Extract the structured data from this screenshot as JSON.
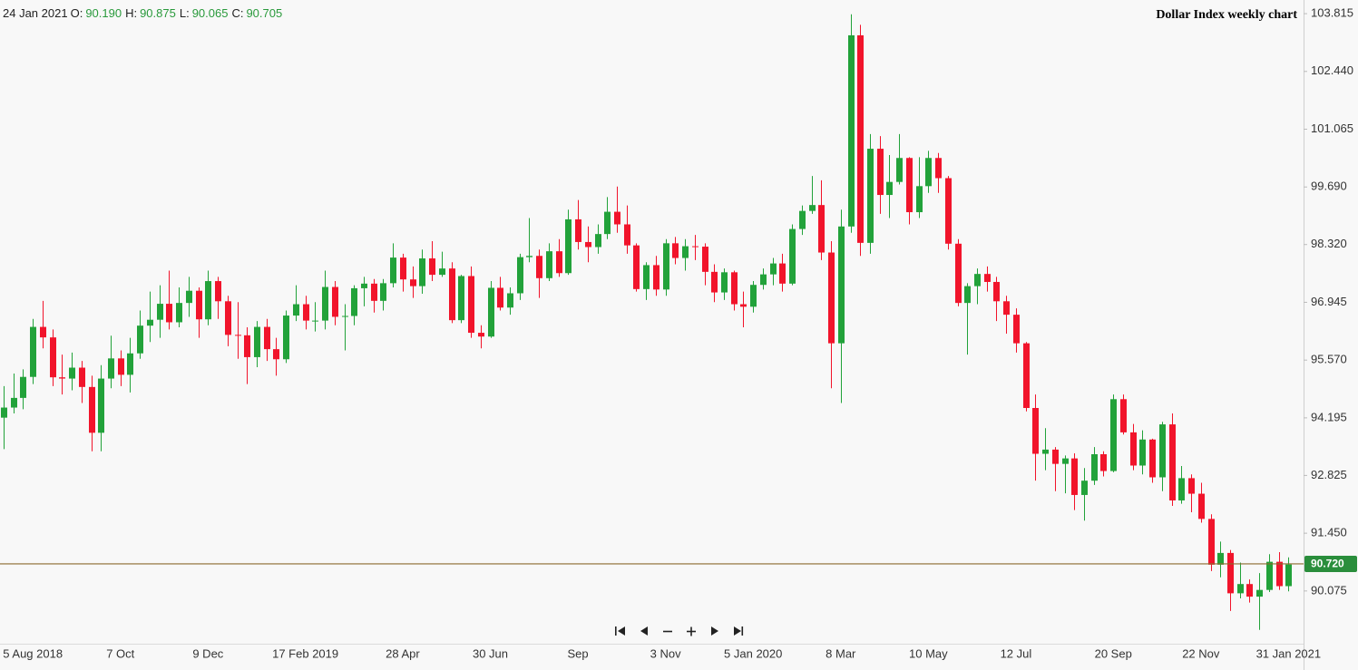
{
  "chart_data": {
    "type": "candlestick",
    "title": "Dollar Index weekly chart",
    "header": {
      "date": "24 Jan 2021",
      "fields": [
        {
          "label": "O:",
          "text": "90.190"
        },
        {
          "label": "H:",
          "text": "90.875"
        },
        {
          "label": "L:",
          "text": "90.065"
        },
        {
          "label": "C:",
          "text": "90.705"
        }
      ]
    },
    "up_color": "#22a23a",
    "down_color": "#f1142b",
    "last_price": {
      "value": 90.72,
      "label": "90.720",
      "line_color": "#8a6a2e",
      "box_color": "#2a8e3c"
    },
    "ylim": [
      88.82,
      104.14
    ],
    "yticks": [
      103.815,
      {
        "value": 102.44,
        "label": "102.440"
      },
      101.065,
      {
        "value": 99.69,
        "label": "99.690"
      },
      {
        "value": 98.32,
        "label": "98.320"
      },
      96.945,
      {
        "value": 95.57,
        "label": "95.570"
      },
      94.195,
      92.825,
      {
        "value": 91.45,
        "label": "91.450"
      },
      90.075
    ],
    "categories": [
      null,
      null,
      null,
      "5 Aug 2018",
      null,
      null,
      null,
      null,
      null,
      null,
      null,
      null,
      "7 Oct",
      null,
      null,
      null,
      null,
      null,
      null,
      null,
      null,
      "9 Dec",
      null,
      null,
      null,
      null,
      null,
      null,
      null,
      null,
      null,
      "17 Feb 2019",
      null,
      null,
      null,
      null,
      null,
      null,
      null,
      null,
      null,
      "28 Apr",
      null,
      null,
      null,
      null,
      null,
      null,
      null,
      null,
      "30 Jun",
      null,
      null,
      null,
      null,
      null,
      null,
      null,
      null,
      "Sep",
      null,
      null,
      null,
      null,
      null,
      null,
      null,
      null,
      "3 Nov",
      null,
      null,
      null,
      null,
      null,
      null,
      null,
      null,
      "5 Jan 2020",
      null,
      null,
      null,
      null,
      null,
      null,
      null,
      null,
      "8 Mar",
      null,
      null,
      null,
      null,
      null,
      null,
      null,
      null,
      "10 May",
      null,
      null,
      null,
      null,
      null,
      null,
      null,
      null,
      "12 Jul",
      null,
      null,
      null,
      null,
      null,
      null,
      null,
      null,
      null,
      "20 Sep",
      null,
      null,
      null,
      null,
      null,
      null,
      null,
      null,
      "22 Nov",
      null,
      null,
      null,
      null,
      null,
      null,
      null,
      null,
      "31 Jan 2021"
    ],
    "open": [
      94.2,
      94.44,
      94.67,
      95.17,
      96.36,
      96.11,
      95.16,
      95.13,
      95.39,
      94.93,
      93.84,
      95.13,
      95.61,
      95.22,
      95.73,
      96.39,
      96.53,
      96.91,
      96.47,
      96.93,
      97.22,
      96.54,
      97.45,
      96.97,
      96.17,
      96.16,
      95.64,
      96.36,
      95.83,
      95.59,
      96.63,
      96.9,
      96.51,
      96.51,
      97.31,
      96.6,
      96.62,
      97.28,
      97.39,
      96.98,
      97.4,
      98.01,
      97.49,
      97.33,
      97.99,
      97.6,
      97.75,
      96.52,
      97.57,
      96.22,
      96.13,
      97.29,
      96.82,
      97.16,
      98.02,
      98.05,
      97.52,
      98.16,
      97.64,
      98.92,
      98.38,
      98.26,
      98.57,
      99.1,
      98.8,
      98.3,
      97.26,
      97.83,
      97.25,
      98.35,
      98.0,
      98.28,
      98.27,
      97.67,
      97.18,
      97.66,
      96.9,
      96.84,
      97.36,
      97.61,
      97.87,
      97.39,
      98.69,
      99.12,
      99.26,
      98.13,
      95.97,
      98.75,
      103.3,
      98.36,
      100.6,
      99.5,
      99.81,
      100.38,
      99.09,
      99.71,
      100.38,
      99.9,
      98.34,
      96.93,
      97.33,
      97.62,
      97.43,
      96.97,
      96.65,
      95.97,
      94.43,
      93.34,
      93.44,
      93.1,
      93.23,
      92.36,
      92.7,
      93.33,
      92.93,
      94.64,
      93.85,
      93.06,
      93.68,
      92.78,
      94.04,
      92.23,
      92.76,
      92.39,
      91.79,
      90.7,
      90.98,
      90.02,
      90.24,
      89.94,
      90.1,
      90.77,
      90.19
    ],
    "high": [
      94.95,
      95.25,
      95.35,
      96.55,
      96.98,
      96.3,
      95.7,
      95.75,
      95.55,
      95.2,
      95.45,
      96.15,
      95.8,
      96.1,
      96.75,
      97.2,
      97.35,
      97.7,
      97.3,
      97.55,
      97.3,
      97.7,
      97.55,
      97.1,
      96.95,
      96.35,
      96.5,
      96.55,
      96.1,
      96.75,
      97.35,
      97.1,
      96.95,
      97.7,
      97.45,
      96.9,
      97.35,
      97.55,
      97.5,
      97.5,
      98.35,
      98.1,
      97.8,
      98.2,
      98.4,
      98.15,
      97.9,
      97.6,
      97.8,
      96.4,
      97.45,
      97.55,
      97.3,
      98.1,
      98.95,
      98.2,
      98.35,
      98.45,
      99.15,
      99.38,
      98.75,
      98.8,
      99.45,
      99.7,
      99.25,
      98.35,
      97.9,
      98.05,
      98.45,
      98.5,
      98.45,
      98.55,
      98.35,
      97.85,
      97.75,
      97.7,
      97.2,
      97.45,
      97.75,
      98.0,
      98.1,
      98.8,
      99.25,
      99.95,
      99.85,
      98.4,
      99.15,
      103.8,
      103.55,
      100.95,
      100.9,
      100.45,
      100.95,
      100.4,
      100.4,
      100.55,
      100.5,
      99.95,
      98.45,
      97.4,
      97.75,
      97.8,
      97.55,
      97.1,
      96.8,
      96.0,
      94.75,
      93.95,
      93.5,
      93.3,
      93.35,
      93.0,
      93.5,
      93.4,
      94.75,
      94.75,
      94.05,
      93.9,
      93.7,
      94.1,
      94.3,
      93.05,
      92.85,
      92.65,
      91.9,
      91.25,
      91.05,
      90.75,
      90.35,
      90.5,
      90.95,
      91.0,
      90.875
    ],
    "low": [
      93.45,
      94.3,
      94.4,
      95.0,
      95.85,
      94.95,
      94.75,
      94.85,
      94.55,
      93.4,
      93.4,
      94.9,
      94.95,
      94.8,
      95.6,
      96.0,
      96.1,
      96.3,
      96.35,
      96.6,
      96.1,
      96.4,
      96.55,
      95.9,
      95.6,
      95.0,
      95.4,
      95.55,
      95.2,
      95.5,
      96.5,
      96.3,
      96.25,
      96.3,
      96.4,
      95.8,
      96.4,
      96.85,
      96.7,
      96.75,
      97.3,
      97.2,
      97.05,
      97.15,
      97.45,
      97.55,
      96.45,
      96.45,
      96.1,
      95.85,
      96.1,
      96.75,
      96.65,
      97.0,
      97.9,
      97.05,
      97.45,
      97.55,
      97.6,
      98.2,
      97.9,
      98.1,
      98.45,
      98.6,
      98.1,
      97.2,
      97.0,
      97.1,
      97.1,
      97.85,
      97.7,
      97.95,
      97.35,
      96.95,
      97.0,
      96.75,
      96.35,
      96.7,
      97.25,
      97.35,
      97.2,
      97.35,
      98.55,
      99.05,
      97.95,
      94.9,
      94.55,
      98.6,
      98.05,
      98.1,
      99.05,
      98.95,
      99.75,
      98.8,
      98.95,
      99.55,
      99.55,
      98.2,
      96.85,
      95.7,
      96.9,
      97.2,
      96.5,
      96.2,
      95.75,
      94.35,
      92.7,
      92.95,
      92.45,
      92.4,
      92.0,
      91.75,
      92.6,
      92.8,
      92.9,
      93.8,
      92.95,
      92.85,
      92.65,
      92.45,
      92.1,
      92.15,
      91.95,
      91.7,
      90.55,
      90.4,
      89.6,
      89.9,
      89.8,
      89.15,
      90.05,
      90.1,
      90.065
    ],
    "close": [
      94.44,
      94.67,
      95.17,
      96.36,
      96.11,
      95.16,
      95.13,
      95.39,
      94.93,
      93.84,
      95.13,
      95.61,
      95.22,
      95.73,
      96.39,
      96.53,
      96.91,
      96.47,
      96.93,
      97.22,
      96.54,
      97.45,
      96.97,
      96.17,
      96.16,
      95.64,
      96.36,
      95.83,
      95.59,
      96.63,
      96.9,
      96.51,
      96.51,
      97.31,
      96.6,
      96.62,
      97.28,
      97.39,
      96.98,
      97.4,
      98.01,
      97.49,
      97.33,
      97.99,
      97.6,
      97.75,
      96.52,
      97.57,
      96.22,
      96.13,
      97.29,
      96.82,
      97.16,
      98.02,
      98.05,
      97.52,
      98.16,
      97.64,
      98.92,
      98.38,
      98.26,
      98.57,
      99.1,
      98.8,
      98.3,
      97.26,
      97.83,
      97.25,
      98.35,
      98.0,
      98.28,
      98.27,
      97.67,
      97.18,
      97.66,
      96.9,
      96.84,
      97.36,
      97.61,
      97.87,
      97.39,
      98.69,
      99.12,
      99.26,
      98.13,
      95.97,
      98.75,
      103.3,
      98.36,
      100.6,
      99.5,
      99.81,
      100.38,
      99.09,
      99.71,
      100.38,
      99.9,
      98.34,
      96.93,
      97.33,
      97.62,
      97.43,
      96.97,
      96.65,
      95.97,
      94.43,
      93.34,
      93.44,
      93.1,
      93.23,
      92.36,
      92.7,
      93.33,
      92.93,
      94.64,
      93.85,
      93.06,
      93.68,
      92.78,
      94.04,
      92.23,
      92.76,
      92.39,
      91.79,
      90.7,
      90.98,
      90.02,
      90.24,
      89.94,
      90.1,
      90.77,
      90.19,
      90.705
    ]
  }
}
